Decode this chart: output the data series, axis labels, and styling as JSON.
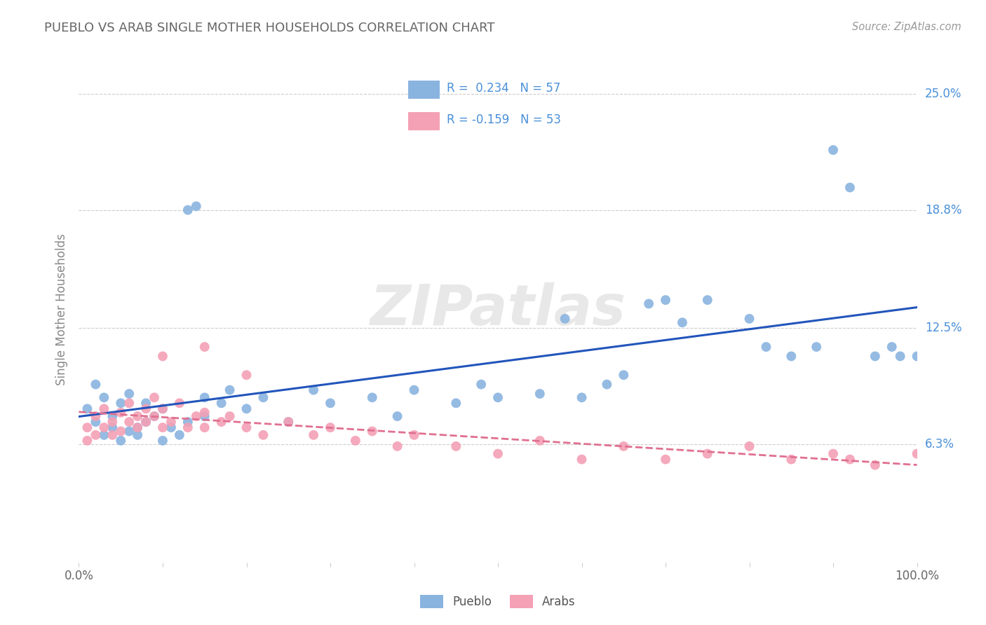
{
  "title": "PUEBLO VS ARAB SINGLE MOTHER HOUSEHOLDS CORRELATION CHART",
  "source": "Source: ZipAtlas.com",
  "ylabel": "Single Mother Households",
  "pueblo_color": "#8ab4e0",
  "arab_color": "#f4a0b5",
  "pueblo_line_color": "#2255bb",
  "arab_line_color": "#e07090",
  "pueblo_R": 0.234,
  "pueblo_N": 57,
  "arab_R": -0.159,
  "arab_N": 53,
  "ytick_vals": [
    0.063,
    0.125,
    0.188,
    0.25
  ],
  "ytick_labels": [
    "6.3%",
    "12.5%",
    "18.8%",
    "25.0%"
  ],
  "legend_label_color": "#4a90d9",
  "title_color": "#666666",
  "source_color": "#999999",
  "watermark_color": "#e8e8e8",
  "pueblo_x": [
    0.01,
    0.02,
    0.02,
    0.03,
    0.03,
    0.04,
    0.04,
    0.05,
    0.05,
    0.06,
    0.06,
    0.07,
    0.07,
    0.08,
    0.08,
    0.09,
    0.1,
    0.1,
    0.11,
    0.12,
    0.13,
    0.14,
    0.15,
    0.15,
    0.17,
    0.18,
    0.2,
    0.22,
    0.25,
    0.28,
    0.3,
    0.35,
    0.38,
    0.4,
    0.45,
    0.48,
    0.5,
    0.55,
    0.58,
    0.6,
    0.63,
    0.65,
    0.68,
    0.7,
    0.72,
    0.75,
    0.8,
    0.82,
    0.85,
    0.88,
    0.9,
    0.92,
    0.95,
    0.97,
    0.98,
    1.0,
    0.13
  ],
  "pueblo_y": [
    0.082,
    0.075,
    0.095,
    0.068,
    0.088,
    0.072,
    0.078,
    0.065,
    0.085,
    0.07,
    0.09,
    0.072,
    0.068,
    0.075,
    0.085,
    0.078,
    0.065,
    0.082,
    0.072,
    0.068,
    0.075,
    0.19,
    0.088,
    0.078,
    0.085,
    0.092,
    0.082,
    0.088,
    0.075,
    0.092,
    0.085,
    0.088,
    0.078,
    0.092,
    0.085,
    0.095,
    0.088,
    0.09,
    0.13,
    0.088,
    0.095,
    0.1,
    0.138,
    0.14,
    0.128,
    0.14,
    0.13,
    0.115,
    0.11,
    0.115,
    0.22,
    0.2,
    0.11,
    0.115,
    0.11,
    0.11,
    0.188
  ],
  "arab_x": [
    0.01,
    0.01,
    0.02,
    0.02,
    0.03,
    0.03,
    0.04,
    0.04,
    0.05,
    0.05,
    0.06,
    0.06,
    0.07,
    0.07,
    0.08,
    0.08,
    0.09,
    0.09,
    0.1,
    0.1,
    0.11,
    0.12,
    0.13,
    0.14,
    0.15,
    0.15,
    0.17,
    0.18,
    0.2,
    0.22,
    0.25,
    0.28,
    0.3,
    0.33,
    0.35,
    0.38,
    0.4,
    0.45,
    0.5,
    0.55,
    0.6,
    0.65,
    0.7,
    0.75,
    0.8,
    0.85,
    0.9,
    0.92,
    0.95,
    1.0,
    0.1,
    0.15,
    0.2
  ],
  "arab_y": [
    0.072,
    0.065,
    0.078,
    0.068,
    0.082,
    0.072,
    0.075,
    0.068,
    0.08,
    0.07,
    0.075,
    0.085,
    0.078,
    0.072,
    0.082,
    0.075,
    0.088,
    0.078,
    0.072,
    0.082,
    0.075,
    0.085,
    0.072,
    0.078,
    0.08,
    0.072,
    0.075,
    0.078,
    0.072,
    0.068,
    0.075,
    0.068,
    0.072,
    0.065,
    0.07,
    0.062,
    0.068,
    0.062,
    0.058,
    0.065,
    0.055,
    0.062,
    0.055,
    0.058,
    0.062,
    0.055,
    0.058,
    0.055,
    0.052,
    0.058,
    0.11,
    0.115,
    0.1
  ]
}
